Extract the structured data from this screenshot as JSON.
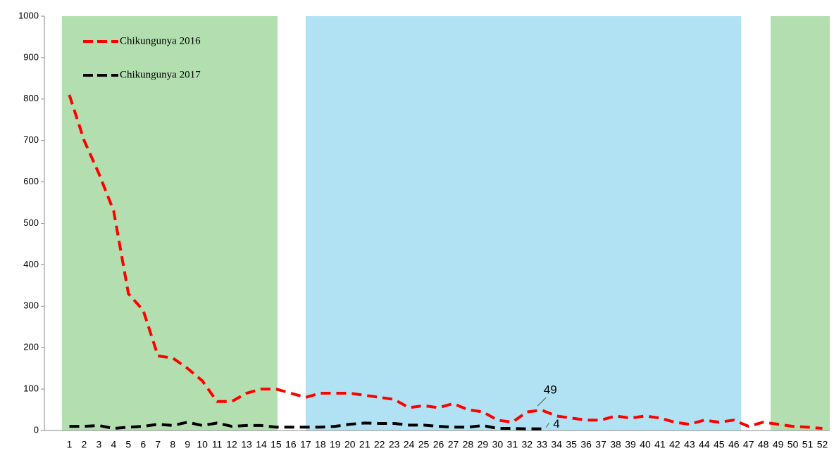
{
  "chart_data": {
    "type": "line",
    "categories": [
      "1",
      "2",
      "3",
      "4",
      "5",
      "6",
      "7",
      "8",
      "9",
      "10",
      "11",
      "12",
      "13",
      "14",
      "15",
      "16",
      "17",
      "18",
      "19",
      "20",
      "21",
      "22",
      "23",
      "24",
      "25",
      "26",
      "27",
      "28",
      "29",
      "30",
      "31",
      "32",
      "33",
      "34",
      "35",
      "36",
      "37",
      "38",
      "39",
      "40",
      "41",
      "42",
      "43",
      "44",
      "45",
      "46",
      "47",
      "48",
      "49",
      "50",
      "51",
      "52"
    ],
    "series": [
      {
        "name": "Chikungunya 2016",
        "color": "#ff0000",
        "values": [
          810,
          700,
          620,
          530,
          330,
          290,
          180,
          175,
          150,
          120,
          70,
          70,
          90,
          100,
          100,
          90,
          80,
          90,
          90,
          90,
          85,
          80,
          75,
          55,
          60,
          55,
          65,
          50,
          45,
          25,
          20,
          45,
          49,
          35,
          30,
          25,
          25,
          35,
          30,
          35,
          30,
          20,
          15,
          25,
          20,
          25,
          10,
          20,
          15,
          10,
          8,
          5
        ]
      },
      {
        "name": "Chikungunya 2017",
        "color": "#000000",
        "values": [
          10,
          10,
          12,
          5,
          8,
          10,
          15,
          12,
          20,
          12,
          18,
          10,
          12,
          12,
          8,
          8,
          8,
          8,
          10,
          15,
          18,
          17,
          17,
          13,
          13,
          10,
          8,
          8,
          12,
          5,
          5,
          4,
          4,
          null,
          null,
          null,
          null,
          null,
          null,
          null,
          null,
          null,
          null,
          null,
          null,
          null,
          null,
          null,
          null,
          null,
          null,
          null
        ]
      }
    ],
    "ylim": [
      0,
      1000
    ],
    "yticks": [
      0,
      100,
      200,
      300,
      400,
      500,
      600,
      700,
      800,
      900,
      1000
    ]
  }
}
